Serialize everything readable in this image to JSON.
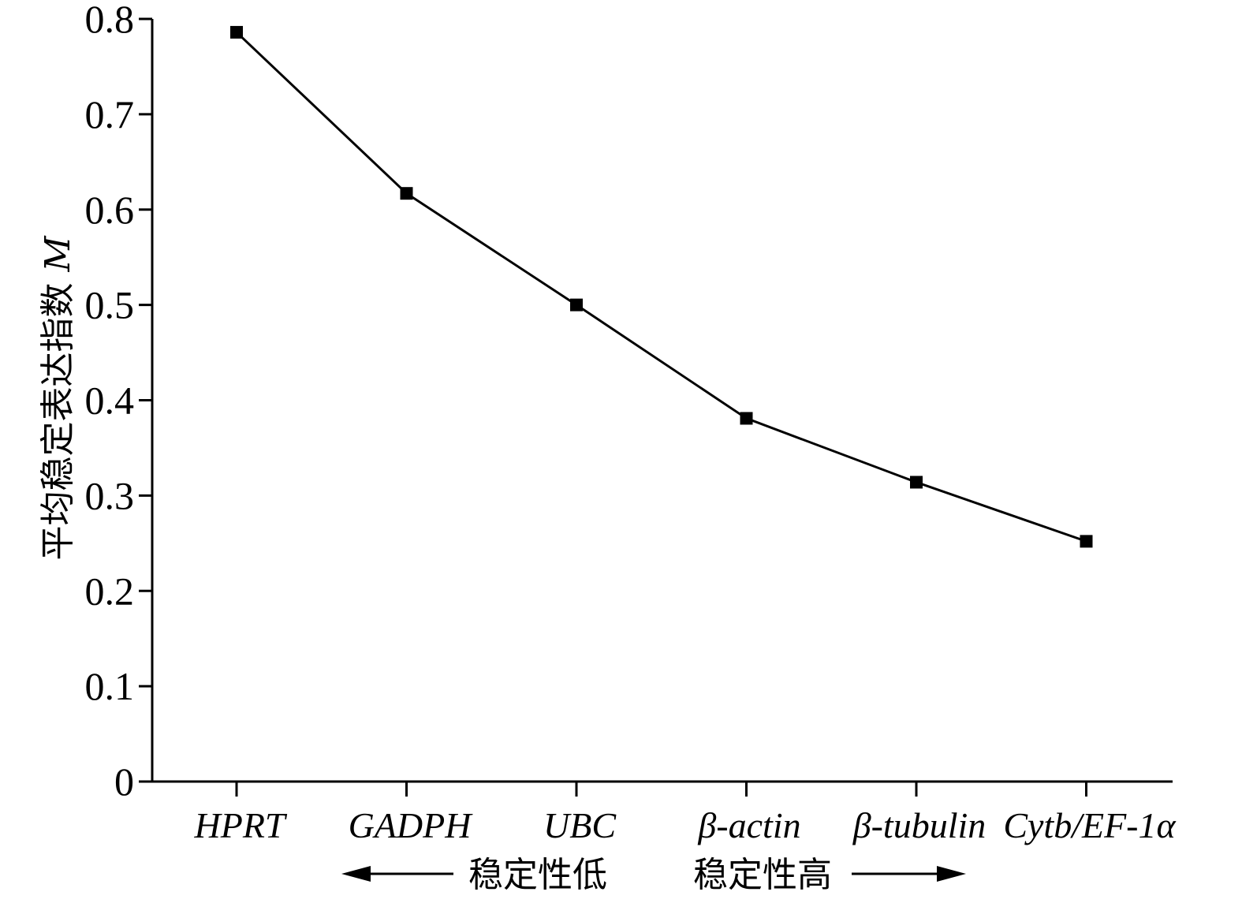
{
  "chart_data": {
    "type": "line",
    "categories": [
      "HPRT",
      "GADPH",
      "UBC",
      "β-actin",
      "β-tubulin",
      "Cytb/EF-1α"
    ],
    "series": [
      {
        "values": [
          0.786,
          0.617,
          0.5,
          0.381,
          0.314,
          0.252
        ]
      }
    ],
    "ylabel": "平均稳定表达指数",
    "ylabel_symbol": "M",
    "ylim": [
      0,
      0.8
    ],
    "yticks": [
      "0",
      "0.1",
      "0.2",
      "0.3",
      "0.4",
      "0.5",
      "0.6",
      "0.7",
      "0.8"
    ],
    "ytick_values": [
      0,
      0.1,
      0.2,
      0.3,
      0.4,
      0.5,
      0.6,
      0.7,
      0.8
    ],
    "grid": false,
    "annotations": {
      "left_arrow_text": "稳定性低",
      "right_arrow_text": "稳定性高"
    },
    "line_color": "#000000",
    "marker": "square"
  }
}
